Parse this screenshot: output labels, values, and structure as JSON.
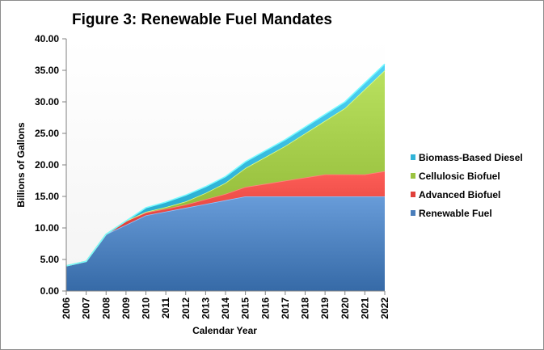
{
  "chart_data": {
    "type": "area",
    "stacked": true,
    "title": "Figure 3: Renewable Fuel Mandates",
    "xlabel": "Calendar Year",
    "ylabel": "Billions of Gallons",
    "ylim": [
      0,
      40
    ],
    "yticks": [
      "0.00",
      "5.00",
      "10.00",
      "15.00",
      "20.00",
      "25.00",
      "30.00",
      "35.00",
      "40.00"
    ],
    "categories": [
      "2006",
      "2007",
      "2008",
      "2009",
      "2010",
      "2011",
      "2012",
      "2013",
      "2014",
      "2015",
      "2016",
      "2017",
      "2018",
      "2019",
      "2020",
      "2021",
      "2022"
    ],
    "grid": false,
    "legend_position": "right",
    "series": [
      {
        "name": "Renewable Fuel",
        "color": "#4a7ebb",
        "values": [
          4.0,
          4.7,
          9.0,
          10.5,
          12.0,
          12.6,
          13.2,
          13.8,
          14.4,
          15.0,
          15.0,
          15.0,
          15.0,
          15.0,
          15.0,
          15.0,
          15.0
        ]
      },
      {
        "name": "Advanced Biofuel",
        "color": "#e0403a",
        "values": [
          0,
          0,
          0,
          0.6,
          0.45,
          0.45,
          0.5,
          0.75,
          1.0,
          1.5,
          2.0,
          2.5,
          3.0,
          3.5,
          3.5,
          3.5,
          4.0
        ]
      },
      {
        "name": "Cellulosic Biofuel",
        "color": "#9bc341",
        "values": [
          0,
          0,
          0,
          0,
          0.1,
          0.25,
          0.5,
          1.0,
          1.75,
          3.0,
          4.25,
          5.5,
          7.0,
          8.5,
          10.5,
          13.5,
          16.0
        ]
      },
      {
        "name": "Biomass-Based Diesel",
        "color": "#31b4d8",
        "values": [
          0,
          0,
          0,
          0,
          0.65,
          0.8,
          1.0,
          1.0,
          1.0,
          1.0,
          1.0,
          1.0,
          1.0,
          1.0,
          1.0,
          1.0,
          1.0
        ]
      }
    ],
    "legend_order": [
      "Biomass-Based Diesel",
      "Cellulosic Biofuel",
      "Advanced Biofuel",
      "Renewable Fuel"
    ]
  }
}
